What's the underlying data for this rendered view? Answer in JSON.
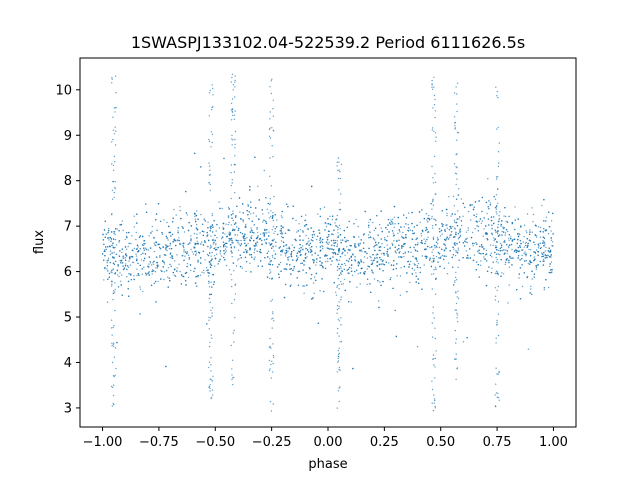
{
  "chart_data": {
    "type": "scatter",
    "title": "1SWASPJ133102.04-522539.2 Period 6111626.5s",
    "xlabel": "phase",
    "ylabel": "flux",
    "xlim": [
      -1.1,
      1.1
    ],
    "ylim": [
      2.58,
      10.7
    ],
    "x_ticks": [
      -1.0,
      -0.75,
      -0.5,
      -0.25,
      0.0,
      0.25,
      0.5,
      0.75,
      1.0
    ],
    "x_tick_labels": [
      "−1.00",
      "−0.75",
      "−0.50",
      "−0.25",
      "0.00",
      "0.25",
      "0.50",
      "0.75",
      "1.00"
    ],
    "y_ticks": [
      3,
      4,
      5,
      6,
      7,
      8,
      9,
      10
    ],
    "y_tick_labels": [
      "3",
      "4",
      "5",
      "6",
      "7",
      "8",
      "9",
      "10"
    ],
    "grid": false,
    "legend": "none",
    "point_color": "#1f77b4",
    "series": [
      {
        "x_range": [
          -1.0,
          1.0
        ],
        "typical_y_range": [
          5.6,
          7.6
        ],
        "y_clip": [
          2.9,
          10.35
        ],
        "band_center_y": [
          [
            -1.0,
            6.5
          ],
          [
            -0.9,
            6.3
          ],
          [
            -0.75,
            6.4
          ],
          [
            -0.6,
            6.6
          ],
          [
            -0.5,
            6.5
          ],
          [
            -0.4,
            6.9
          ],
          [
            -0.3,
            6.8
          ],
          [
            -0.2,
            6.6
          ],
          [
            -0.1,
            6.4
          ],
          [
            0.0,
            6.5
          ],
          [
            0.1,
            6.3
          ],
          [
            0.2,
            6.4
          ],
          [
            0.3,
            6.6
          ],
          [
            0.4,
            6.5
          ],
          [
            0.5,
            6.7
          ],
          [
            0.6,
            6.9
          ],
          [
            0.7,
            6.8
          ],
          [
            0.8,
            6.6
          ],
          [
            0.9,
            6.4
          ],
          [
            1.0,
            6.5
          ]
        ],
        "streaks": [
          {
            "x": -0.95,
            "y_range": [
              2.9,
              10.35
            ]
          },
          {
            "x": -0.52,
            "y_range": [
              2.9,
              10.35
            ]
          },
          {
            "x": -0.42,
            "y_range": [
              3.5,
              10.35
            ]
          },
          {
            "x": -0.25,
            "y_range": [
              2.9,
              10.35
            ]
          },
          {
            "x": 0.05,
            "y_range": [
              2.9,
              8.5
            ]
          },
          {
            "x": 0.47,
            "y_range": [
              2.9,
              10.35
            ]
          },
          {
            "x": 0.57,
            "y_range": [
              3.5,
              10.35
            ]
          },
          {
            "x": 0.75,
            "y_range": [
              2.9,
              10.35
            ]
          }
        ]
      }
    ]
  }
}
